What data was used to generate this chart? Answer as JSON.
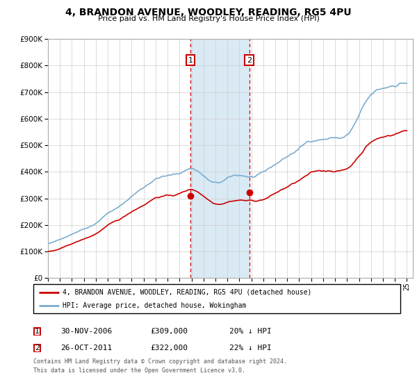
{
  "title": "4, BRANDON AVENUE, WOODLEY, READING, RG5 4PU",
  "subtitle": "Price paid vs. HM Land Registry's House Price Index (HPI)",
  "legend_line1": "4, BRANDON AVENUE, WOODLEY, READING, RG5 4PU (detached house)",
  "legend_line2": "HPI: Average price, detached house, Wokingham",
  "footnote1": "Contains HM Land Registry data © Crown copyright and database right 2024.",
  "footnote2": "This data is licensed under the Open Government Licence v3.0.",
  "sale1_date": "30-NOV-2006",
  "sale1_price": "£309,000",
  "sale1_pct": "20% ↓ HPI",
  "sale2_date": "26-OCT-2011",
  "sale2_price": "£322,000",
  "sale2_pct": "22% ↓ HPI",
  "sale1_x": 2006.917,
  "sale2_x": 2011.833,
  "sale1_y": 309000,
  "sale2_y": 322000,
  "red_color": "#cc0000",
  "blue_color": "#7aadcf",
  "shade_color": "#daeaf5",
  "ylim": [
    0,
    900000
  ],
  "xlim_left": 1995.0,
  "xlim_right": 2025.5,
  "hpi_annual_years": [
    1995,
    1996,
    1997,
    1998,
    1999,
    2000,
    2001,
    2002,
    2003,
    2004,
    2005,
    2006,
    2007,
    2008,
    2009,
    2010,
    2011,
    2012,
    2013,
    2014,
    2015,
    2016,
    2017,
    2018,
    2019,
    2020,
    2021,
    2022,
    2023,
    2024,
    2025
  ],
  "hpi_annual_vals": [
    130000,
    145000,
    168000,
    190000,
    215000,
    255000,
    280000,
    320000,
    355000,
    390000,
    400000,
    410000,
    430000,
    400000,
    370000,
    385000,
    395000,
    390000,
    400000,
    430000,
    460000,
    490000,
    520000,
    530000,
    535000,
    545000,
    615000,
    680000,
    700000,
    720000,
    730000
  ],
  "red_annual_years": [
    1995,
    1996,
    1997,
    1998,
    1999,
    2000,
    2001,
    2002,
    2003,
    2004,
    2005,
    2006,
    2007,
    2008,
    2009,
    2010,
    2011,
    2012,
    2013,
    2014,
    2015,
    2016,
    2017,
    2018,
    2019,
    2020,
    2021,
    2022,
    2023,
    2024,
    2025
  ],
  "red_annual_vals": [
    100000,
    110000,
    128000,
    145000,
    165000,
    195000,
    215000,
    245000,
    272000,
    300000,
    307000,
    315000,
    330000,
    307000,
    283000,
    294000,
    302000,
    299000,
    306000,
    329000,
    353000,
    376000,
    399000,
    406000,
    410000,
    418000,
    472000,
    525000,
    542000,
    558000,
    570000
  ]
}
